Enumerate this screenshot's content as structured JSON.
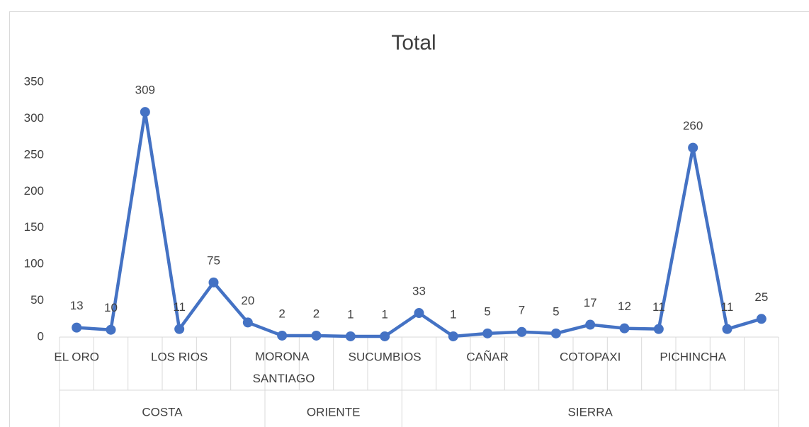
{
  "chart_data": {
    "type": "line",
    "title": "Total",
    "categories": [
      "EL ORO",
      null,
      null,
      "LOS RIOS",
      null,
      null,
      "MORONA SANTIAGO",
      null,
      null,
      "SUCUMBIOS",
      null,
      null,
      "CAÑAR",
      null,
      null,
      "COTOPAXI",
      null,
      null,
      "PICHINCHA",
      null,
      null
    ],
    "groups": [
      {
        "label": "COSTA",
        "size": 6
      },
      {
        "label": "ORIENTE",
        "size": 4
      },
      {
        "label": "SIERRA",
        "size": 11
      }
    ],
    "series": [
      {
        "name": "Total",
        "color": "#4472c4",
        "values": [
          13,
          10,
          309,
          11,
          75,
          20,
          2,
          2,
          1,
          1,
          33,
          1,
          5,
          7,
          5,
          17,
          12,
          11,
          260,
          11,
          25
        ]
      }
    ],
    "ylim": [
      0,
      350
    ],
    "yticks": [
      0,
      50,
      100,
      150,
      200,
      250,
      300,
      350
    ],
    "grid": false,
    "data_labels": true
  }
}
